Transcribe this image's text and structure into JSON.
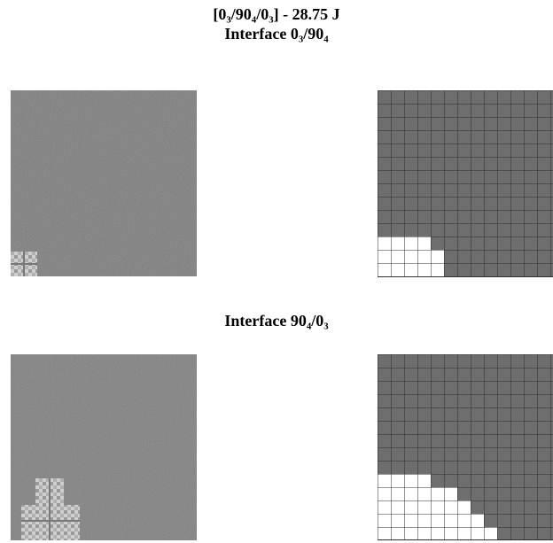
{
  "title": "[0₃/90₄/0₃] - 28.75 J",
  "panels": [
    {
      "label": "Interface 0₃/90₄"
    },
    {
      "label": "Interface 90₄/0₃"
    }
  ]
}
